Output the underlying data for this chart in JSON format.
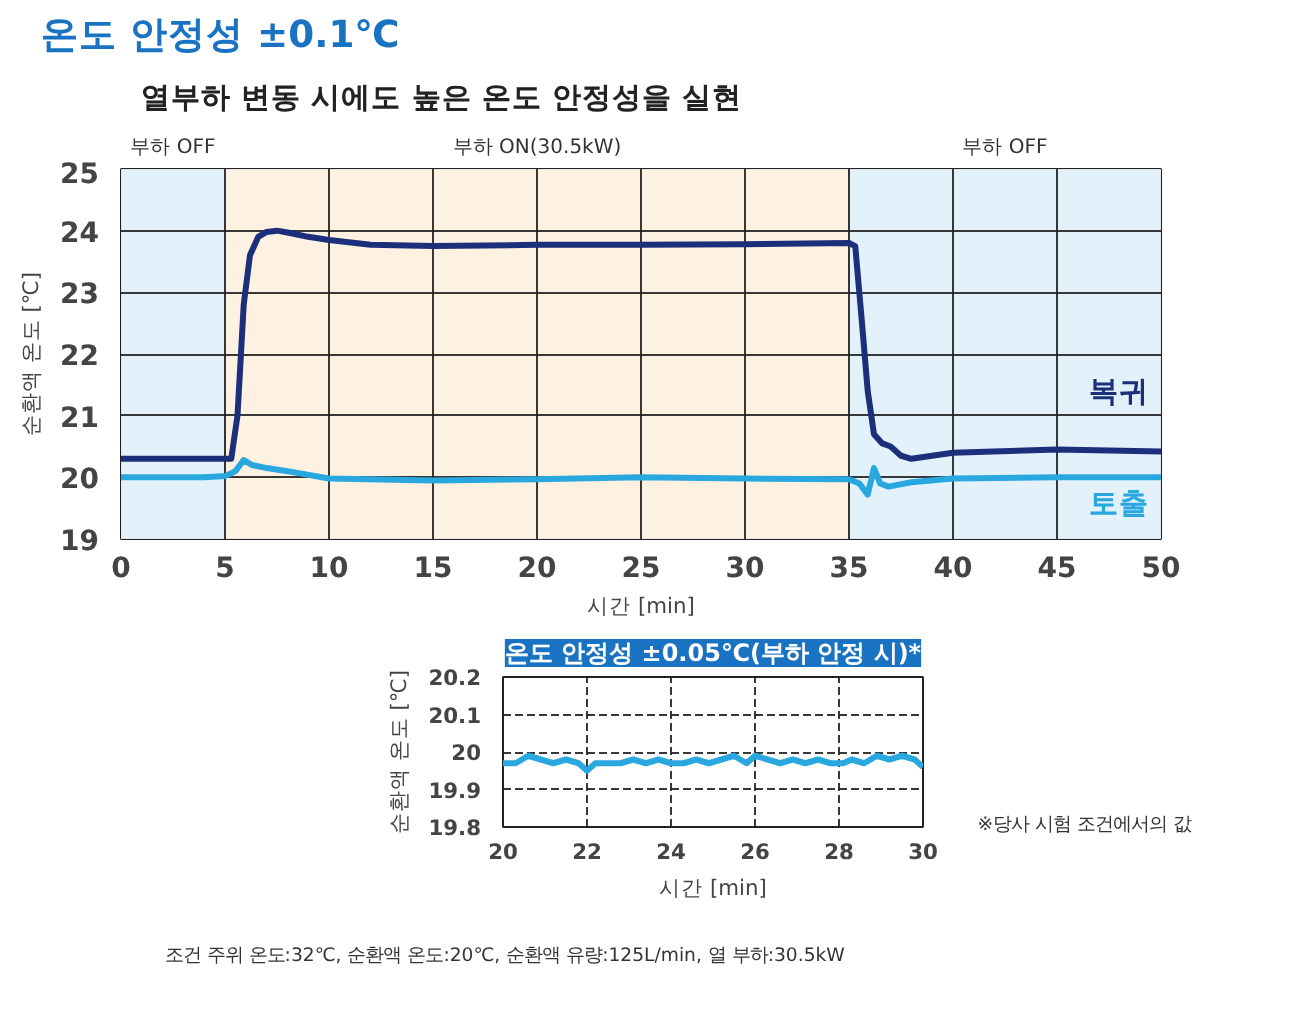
{
  "chart_data": [
    {
      "type": "line",
      "title": "온도 안정성 ±0.1℃",
      "subtitle": "열부하 변동 시에도 높은 온도 안정성을 실현",
      "xlabel": "시간 [min]",
      "ylabel": "순환액 온도 [℃]",
      "xlim": [
        0,
        50
      ],
      "ylim": [
        19,
        25
      ],
      "xticks": [
        0,
        5,
        10,
        15,
        20,
        25,
        30,
        35,
        40,
        45,
        50
      ],
      "yticks": [
        19,
        20,
        21,
        22,
        23,
        24,
        25
      ],
      "grid": true,
      "bands": [
        {
          "axis": "x",
          "from": 0,
          "to": 5,
          "label": "부하 OFF",
          "color": "#e3f1fb"
        },
        {
          "axis": "x",
          "from": 5,
          "to": 35,
          "label": "부하 ON(30.5kW)",
          "color": "#fdf1e2"
        },
        {
          "axis": "x",
          "from": 35,
          "to": 50,
          "label": "부하 OFF",
          "color": "#e3f1fb"
        }
      ],
      "series": [
        {
          "name": "복귀",
          "color": "#1b2f7a",
          "x": [
            0,
            2,
            4,
            5.3,
            5.6,
            5.9,
            6.2,
            6.6,
            7,
            7.5,
            8,
            9,
            10,
            12,
            15,
            20,
            25,
            30,
            35,
            35.3,
            35.6,
            35.9,
            36.2,
            36.6,
            37,
            37.5,
            38,
            39,
            40,
            45,
            50
          ],
          "values": [
            20.3,
            20.3,
            20.3,
            20.3,
            21.0,
            22.8,
            23.6,
            23.9,
            23.98,
            24.0,
            23.97,
            23.9,
            23.85,
            23.77,
            23.75,
            23.77,
            23.77,
            23.78,
            23.8,
            23.75,
            22.6,
            21.4,
            20.7,
            20.55,
            20.5,
            20.35,
            20.3,
            20.35,
            20.4,
            20.45,
            20.42
          ]
        },
        {
          "name": "토출",
          "color": "#29a8e0",
          "x": [
            0,
            2,
            4,
            5,
            5.5,
            5.9,
            6.3,
            7,
            8,
            10,
            15,
            20,
            25,
            30,
            35,
            35.5,
            35.9,
            36.2,
            36.5,
            36.9,
            38,
            40,
            45,
            50
          ],
          "values": [
            20.0,
            20.0,
            20.0,
            20.02,
            20.1,
            20.28,
            20.2,
            20.15,
            20.1,
            19.98,
            19.95,
            19.97,
            20.0,
            19.98,
            19.97,
            19.9,
            19.72,
            20.15,
            19.9,
            19.85,
            19.92,
            19.98,
            20.0,
            20.0
          ]
        }
      ]
    },
    {
      "type": "line",
      "title": "온도 안정성 ±0.05℃(부하 안정 시)*",
      "xlabel": "시간 [min]",
      "ylabel": "순환액 온도 [℃]",
      "xlim": [
        20,
        30
      ],
      "ylim": [
        19.8,
        20.2
      ],
      "xticks": [
        20,
        22,
        24,
        26,
        28,
        30
      ],
      "yticks": [
        19.8,
        19.9,
        20,
        20.1,
        20.2
      ],
      "grid": true,
      "annotations": [
        "※당사 시험 조건에서의 값",
        "조건 주위 온도:32℃, 순환액 온도:20℃, 순환액 유량:125L/min, 열 부하:30.5kW"
      ],
      "series": [
        {
          "color": "#29a8e0",
          "x": [
            20,
            20.3,
            20.6,
            20.9,
            21.2,
            21.5,
            21.8,
            22.0,
            22.2,
            22.5,
            22.8,
            23.1,
            23.4,
            23.7,
            24.0,
            24.3,
            24.6,
            24.9,
            25.2,
            25.5,
            25.8,
            26.0,
            26.3,
            26.6,
            26.9,
            27.2,
            27.5,
            27.8,
            28.1,
            28.3,
            28.6,
            28.9,
            29.2,
            29.5,
            29.8,
            30
          ],
          "values": [
            19.97,
            19.97,
            19.99,
            19.98,
            19.97,
            19.98,
            19.97,
            19.95,
            19.97,
            19.97,
            19.97,
            19.98,
            19.97,
            19.98,
            19.97,
            19.97,
            19.98,
            19.97,
            19.98,
            19.99,
            19.97,
            19.99,
            19.98,
            19.97,
            19.98,
            19.97,
            19.98,
            19.97,
            19.97,
            19.98,
            19.97,
            19.99,
            19.98,
            19.99,
            19.98,
            19.96
          ]
        }
      ]
    }
  ]
}
